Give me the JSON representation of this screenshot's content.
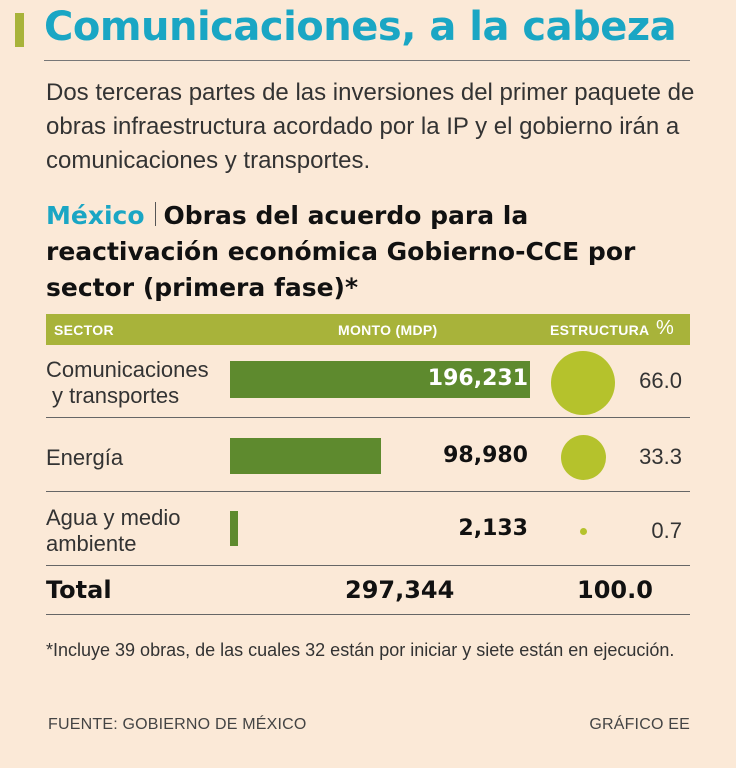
{
  "headline": "Comunicaciones, a la cabeza",
  "intro": "Dos terceras partes de las inversiones del primer paquete de obras infraestructura acordado por la IP y el gobierno irán a comunicaciones y transportes.",
  "subtitle": {
    "country": "México",
    "title": "Obras del acuerdo para la reactivación económica Gobierno-CCE por sector (primera fase)*"
  },
  "colors": {
    "accent": "#1aa6c4",
    "header_green": "#a8b33a",
    "bar_green": "#5e8a2e",
    "bubble_green": "#b5c22c",
    "background": "#fbe9d7"
  },
  "table": {
    "headers": {
      "sector": "SECTOR",
      "amount": "MONTO (MDP)",
      "structure": "ESTRUCTURA",
      "pct_symbol": "%"
    }
  },
  "chart_data": {
    "type": "table",
    "title": "Obras del acuerdo para la reactivación económica Gobierno-CCE por sector (primera fase)*",
    "categories": [
      "Comunicaciones y transportes",
      "Energía",
      "Agua y medio ambiente"
    ],
    "series": [
      {
        "name": "Monto (MDP)",
        "values": [
          196231,
          98980,
          2133
        ]
      },
      {
        "name": "Estructura %",
        "values": [
          66.0,
          33.3,
          0.7
        ]
      }
    ],
    "rows": [
      {
        "label_line1": "Comunicaciones",
        "label_line2": "y transportes",
        "amount": 196231,
        "amount_text": "196,231",
        "pct": 66.0,
        "pct_text": "66.0"
      },
      {
        "label_line1": "Energía",
        "label_line2": "",
        "amount": 98980,
        "amount_text": "98,980",
        "pct": 33.3,
        "pct_text": "33.3"
      },
      {
        "label_line1": "Agua y medio",
        "label_line2": "ambiente",
        "amount": 2133,
        "amount_text": "2,133",
        "pct": 0.7,
        "pct_text": "0.7"
      }
    ],
    "total": {
      "label": "Total",
      "amount_text": "297,344",
      "pct_text": "100.0"
    }
  },
  "note": "*Incluye 39 obras, de las cuales 32 están por iniciar y siete están en ejecución.",
  "footer": {
    "source": "FUENTE: GOBIERNO DE MÉXICO",
    "credit": "GRÁFICO EE"
  }
}
